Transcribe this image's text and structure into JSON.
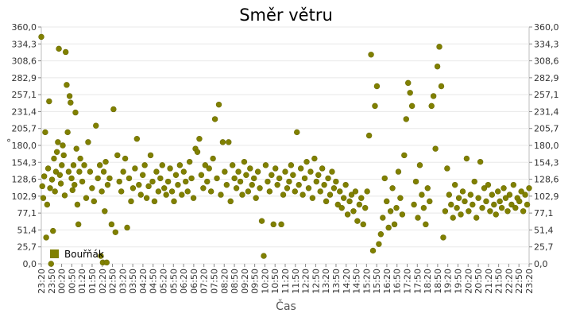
{
  "chart_data": {
    "type": "scatter",
    "title": "Směr větru",
    "xlabel": "Čas",
    "ylabel": "°",
    "ylim": [
      0,
      360
    ],
    "y_ticks": [
      "0,0",
      "25,7",
      "51,4",
      "77,1",
      "102,9",
      "128,6",
      "154,3",
      "180,0",
      "205,7",
      "231,4",
      "257,1",
      "282,9",
      "308,6",
      "334,3",
      "360,0"
    ],
    "y_axis_mirrored_right": true,
    "grid": "horizontal",
    "x_ticks": [
      "23:20",
      "23:50",
      "00:20",
      "00:50",
      "01:20",
      "01:50",
      "02:20",
      "02:50",
      "03:20",
      "03:50",
      "04:20",
      "04:50",
      "05:20",
      "05:50",
      "06:20",
      "06:50",
      "07:20",
      "07:50",
      "08:20",
      "08:50",
      "09:20",
      "09:50",
      "10:20",
      "10:50",
      "11:20",
      "11:50",
      "12:20",
      "12:50",
      "13:20",
      "13:50",
      "14:20",
      "14:50",
      "15:20",
      "15:50",
      "16:20",
      "16:50",
      "17:20",
      "17:50",
      "18:20",
      "18:50",
      "19:20",
      "19:50",
      "20:20",
      "20:50",
      "21:20",
      "21:50",
      "22:20",
      "22:50",
      "23:20"
    ],
    "legend": {
      "position": "bottom-left",
      "entries": [
        "Bouřňák"
      ]
    },
    "series": [
      {
        "name": "Bouřňák",
        "color": "#808000",
        "points": [
          [
            0.0,
            345
          ],
          [
            0.1,
            118
          ],
          [
            0.2,
            100
          ],
          [
            0.3,
            133
          ],
          [
            0.4,
            200
          ],
          [
            0.5,
            40
          ],
          [
            0.6,
            90
          ],
          [
            0.7,
            145
          ],
          [
            0.8,
            247
          ],
          [
            0.9,
            115
          ],
          [
            1.0,
            0
          ],
          [
            1.1,
            128
          ],
          [
            1.2,
            50
          ],
          [
            1.3,
            160
          ],
          [
            1.4,
            110
          ],
          [
            1.5,
            140
          ],
          [
            1.6,
            170
          ],
          [
            1.7,
            185
          ],
          [
            1.8,
            327
          ],
          [
            1.9,
            135
          ],
          [
            2.0,
            122
          ],
          [
            2.1,
            150
          ],
          [
            2.2,
            180
          ],
          [
            2.3,
            165
          ],
          [
            2.4,
            104
          ],
          [
            2.5,
            322
          ],
          [
            2.6,
            272
          ],
          [
            2.7,
            200
          ],
          [
            2.8,
            140
          ],
          [
            2.9,
            255
          ],
          [
            3.0,
            245
          ],
          [
            3.1,
            130
          ],
          [
            3.2,
            112
          ],
          [
            3.3,
            150
          ],
          [
            3.4,
            120
          ],
          [
            3.5,
            230
          ],
          [
            3.6,
            175
          ],
          [
            3.7,
            90
          ],
          [
            3.8,
            60
          ],
          [
            3.9,
            140
          ],
          [
            4.0,
            160
          ],
          [
            4.2,
            125
          ],
          [
            4.4,
            150
          ],
          [
            4.6,
            100
          ],
          [
            4.8,
            185
          ],
          [
            5.0,
            140
          ],
          [
            5.2,
            115
          ],
          [
            5.4,
            95
          ],
          [
            5.6,
            210
          ],
          [
            5.8,
            130
          ],
          [
            6.0,
            150
          ],
          [
            6.1,
            12
          ],
          [
            6.2,
            110
          ],
          [
            6.3,
            2
          ],
          [
            6.4,
            140
          ],
          [
            6.5,
            80
          ],
          [
            6.6,
            155
          ],
          [
            6.7,
            2
          ],
          [
            6.8,
            120
          ],
          [
            7.0,
            130
          ],
          [
            7.2,
            60
          ],
          [
            7.4,
            235
          ],
          [
            7.6,
            48
          ],
          [
            7.8,
            165
          ],
          [
            8.0,
            125
          ],
          [
            8.2,
            110
          ],
          [
            8.4,
            140
          ],
          [
            8.6,
            160
          ],
          [
            8.8,
            55
          ],
          [
            9.0,
            130
          ],
          [
            9.2,
            95
          ],
          [
            9.4,
            115
          ],
          [
            9.6,
            145
          ],
          [
            9.8,
            190
          ],
          [
            10.0,
            120
          ],
          [
            10.2,
            105
          ],
          [
            10.4,
            135
          ],
          [
            10.6,
            150
          ],
          [
            10.8,
            100
          ],
          [
            11.0,
            118
          ],
          [
            11.2,
            165
          ],
          [
            11.4,
            125
          ],
          [
            11.6,
            95
          ],
          [
            11.8,
            140
          ],
          [
            12.0,
            110
          ],
          [
            12.2,
            130
          ],
          [
            12.4,
            150
          ],
          [
            12.6,
            115
          ],
          [
            12.8,
            105
          ],
          [
            13.0,
            125
          ],
          [
            13.2,
            145
          ],
          [
            13.4,
            110
          ],
          [
            13.6,
            95
          ],
          [
            13.8,
            135
          ],
          [
            14.0,
            120
          ],
          [
            14.2,
            150
          ],
          [
            14.4,
            105
          ],
          [
            14.6,
            140
          ],
          [
            14.8,
            125
          ],
          [
            15.0,
            110
          ],
          [
            15.2,
            155
          ],
          [
            15.4,
            130
          ],
          [
            15.6,
            100
          ],
          [
            15.8,
            175
          ],
          [
            16.0,
            170
          ],
          [
            16.2,
            190
          ],
          [
            16.4,
            135
          ],
          [
            16.6,
            115
          ],
          [
            16.8,
            150
          ],
          [
            17.0,
            125
          ],
          [
            17.2,
            145
          ],
          [
            17.4,
            110
          ],
          [
            17.6,
            160
          ],
          [
            17.8,
            220
          ],
          [
            18.0,
            130
          ],
          [
            18.2,
            242
          ],
          [
            18.4,
            105
          ],
          [
            18.6,
            185
          ],
          [
            18.8,
            140
          ],
          [
            19.0,
            120
          ],
          [
            19.2,
            185
          ],
          [
            19.4,
            95
          ],
          [
            19.6,
            150
          ],
          [
            19.8,
            130
          ],
          [
            20.0,
            115
          ],
          [
            20.2,
            140
          ],
          [
            20.4,
            125
          ],
          [
            20.6,
            105
          ],
          [
            20.8,
            155
          ],
          [
            21.0,
            135
          ],
          [
            21.2,
            110
          ],
          [
            21.4,
            145
          ],
          [
            21.6,
            120
          ],
          [
            21.8,
            130
          ],
          [
            22.0,
            100
          ],
          [
            22.2,
            140
          ],
          [
            22.4,
            115
          ],
          [
            22.6,
            65
          ],
          [
            22.8,
            12
          ],
          [
            23.0,
            150
          ],
          [
            23.2,
            125
          ],
          [
            23.4,
            110
          ],
          [
            23.6,
            135
          ],
          [
            23.8,
            60
          ],
          [
            24.0,
            145
          ],
          [
            24.2,
            120
          ],
          [
            24.4,
            130
          ],
          [
            24.6,
            60
          ],
          [
            24.8,
            105
          ],
          [
            25.0,
            140
          ],
          [
            25.2,
            115
          ],
          [
            25.4,
            125
          ],
          [
            25.6,
            150
          ],
          [
            25.8,
            135
          ],
          [
            26.0,
            110
          ],
          [
            26.2,
            200
          ],
          [
            26.4,
            120
          ],
          [
            26.6,
            145
          ],
          [
            26.8,
            105
          ],
          [
            27.0,
            130
          ],
          [
            27.2,
            155
          ],
          [
            27.4,
            115
          ],
          [
            27.6,
            140
          ],
          [
            27.8,
            100
          ],
          [
            28.0,
            160
          ],
          [
            28.2,
            125
          ],
          [
            28.4,
            135
          ],
          [
            28.6,
            110
          ],
          [
            28.8,
            145
          ],
          [
            29.0,
            120
          ],
          [
            29.2,
            95
          ],
          [
            29.4,
            130
          ],
          [
            29.6,
            105
          ],
          [
            29.8,
            140
          ],
          [
            30.0,
            115
          ],
          [
            30.2,
            125
          ],
          [
            30.4,
            90
          ],
          [
            30.6,
            110
          ],
          [
            30.8,
            85
          ],
          [
            31.0,
            100
          ],
          [
            31.2,
            120
          ],
          [
            31.4,
            75
          ],
          [
            31.6,
            95
          ],
          [
            31.8,
            105
          ],
          [
            32.0,
            80
          ],
          [
            32.2,
            110
          ],
          [
            32.4,
            65
          ],
          [
            32.6,
            90
          ],
          [
            32.8,
            100
          ],
          [
            33.0,
            60
          ],
          [
            33.2,
            85
          ],
          [
            33.4,
            110
          ],
          [
            33.6,
            195
          ],
          [
            33.8,
            318
          ],
          [
            34.0,
            20
          ],
          [
            34.2,
            240
          ],
          [
            34.4,
            270
          ],
          [
            34.6,
            30
          ],
          [
            34.8,
            45
          ],
          [
            35.0,
            70
          ],
          [
            35.2,
            130
          ],
          [
            35.4,
            95
          ],
          [
            35.6,
            55
          ],
          [
            35.8,
            80
          ],
          [
            36.0,
            115
          ],
          [
            36.2,
            60
          ],
          [
            36.4,
            85
          ],
          [
            36.6,
            140
          ],
          [
            36.8,
            100
          ],
          [
            37.0,
            75
          ],
          [
            37.2,
            165
          ],
          [
            37.4,
            220
          ],
          [
            37.6,
            275
          ],
          [
            37.8,
            260
          ],
          [
            38.0,
            240
          ],
          [
            38.2,
            90
          ],
          [
            38.4,
            125
          ],
          [
            38.6,
            70
          ],
          [
            38.8,
            150
          ],
          [
            39.0,
            105
          ],
          [
            39.2,
            85
          ],
          [
            39.4,
            60
          ],
          [
            39.6,
            115
          ],
          [
            39.8,
            95
          ],
          [
            40.0,
            240
          ],
          [
            40.2,
            255
          ],
          [
            40.4,
            175
          ],
          [
            40.6,
            300
          ],
          [
            40.8,
            330
          ],
          [
            41.0,
            270
          ],
          [
            41.2,
            40
          ],
          [
            41.4,
            80
          ],
          [
            41.6,
            145
          ],
          [
            41.8,
            105
          ],
          [
            42.0,
            90
          ],
          [
            42.2,
            70
          ],
          [
            42.4,
            120
          ],
          [
            42.6,
            85
          ],
          [
            42.8,
            100
          ],
          [
            43.0,
            75
          ],
          [
            43.2,
            110
          ],
          [
            43.4,
            95
          ],
          [
            43.6,
            160
          ],
          [
            43.8,
            80
          ],
          [
            44.0,
            105
          ],
          [
            44.2,
            90
          ],
          [
            44.4,
            125
          ],
          [
            44.6,
            70
          ],
          [
            44.8,
            100
          ],
          [
            45.0,
            155
          ],
          [
            45.2,
            85
          ],
          [
            45.4,
            115
          ],
          [
            45.6,
            95
          ],
          [
            45.8,
            120
          ],
          [
            46.0,
            80
          ],
          [
            46.2,
            105
          ],
          [
            46.4,
            90
          ],
          [
            46.6,
            75
          ],
          [
            46.8,
            110
          ],
          [
            47.0,
            95
          ],
          [
            47.2,
            85
          ],
          [
            47.4,
            115
          ],
          [
            47.6,
            100
          ],
          [
            47.8,
            80
          ],
          [
            48.0,
            105
          ],
          [
            48.2,
            90
          ],
          [
            48.4,
            120
          ],
          [
            48.6,
            85
          ],
          [
            48.8,
            100
          ],
          [
            49.0,
            95
          ],
          [
            49.2,
            110
          ],
          [
            49.4,
            80
          ],
          [
            49.6,
            105
          ],
          [
            49.8,
            90
          ],
          [
            50.0,
            115
          ]
        ]
      }
    ]
  }
}
